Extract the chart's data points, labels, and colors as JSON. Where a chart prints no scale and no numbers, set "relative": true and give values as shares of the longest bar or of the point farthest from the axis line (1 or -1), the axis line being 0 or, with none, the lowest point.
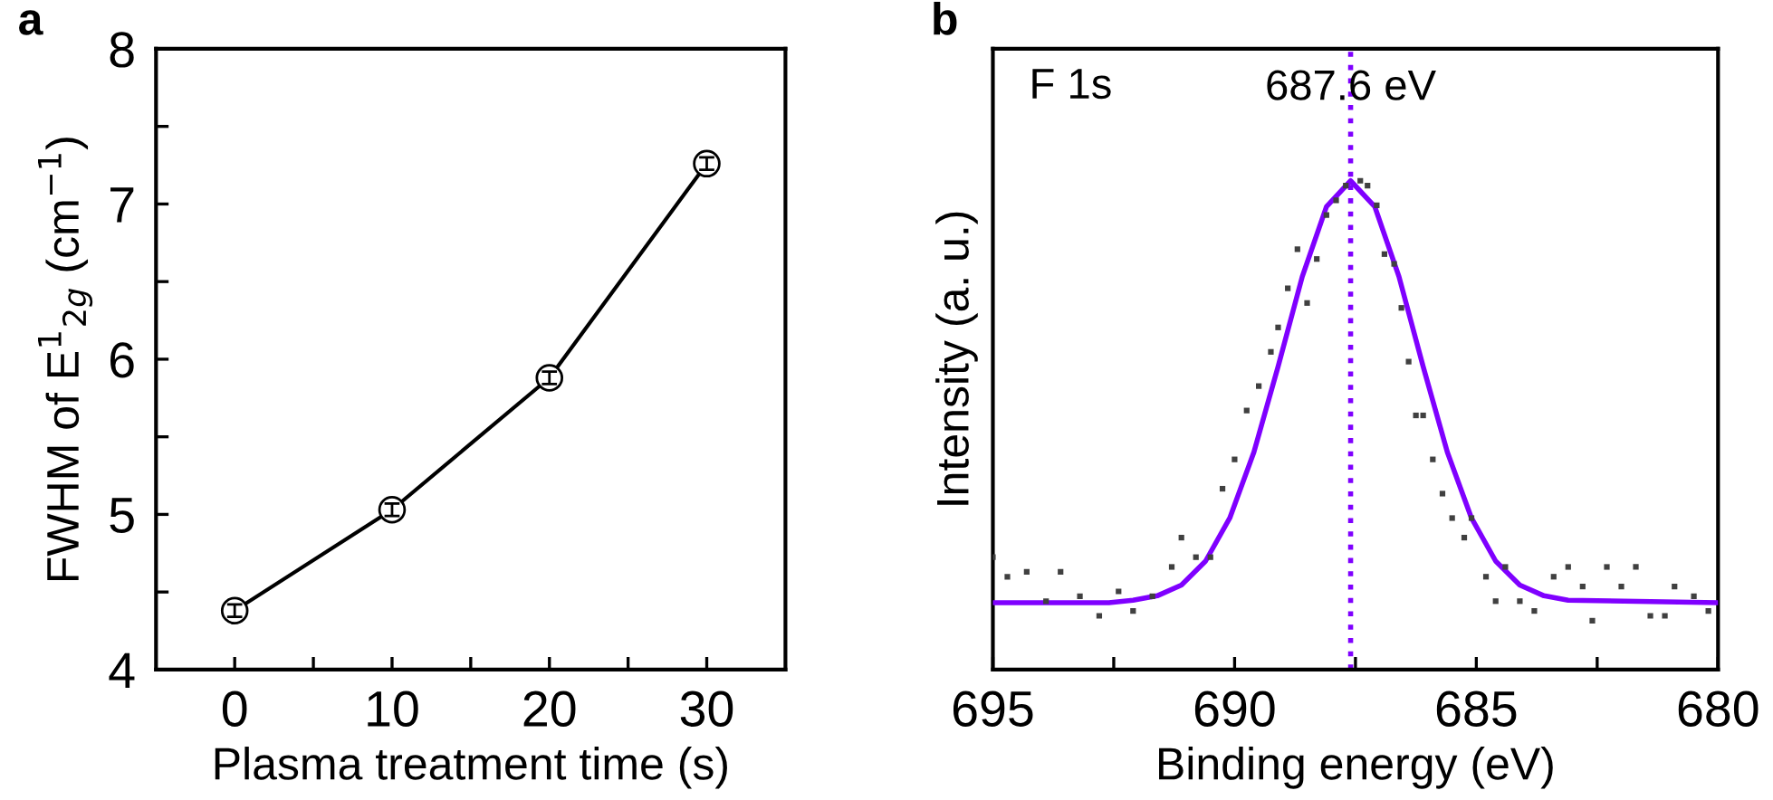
{
  "chart_data": [
    {
      "type": "line",
      "title": "a",
      "xlabel": "Plasma treatment time (s)",
      "ylabel": "FWHM of E$^{1}$$_{2g}$ (cm$^{−1}$)",
      "x": [
        0,
        10,
        20,
        30
      ],
      "series": [
        {
          "color": "#000000",
          "values": [
            4.38,
            5.03,
            5.88,
            7.26
          ],
          "errors": [
            0.04,
            0.04,
            0.04,
            0.04
          ]
        }
      ],
      "marker": "circle",
      "line_style": "solid",
      "xlim": [
        -5,
        35
      ],
      "xticks": [
        0,
        {
          "value": 5,
          "label": null
        },
        10,
        {
          "value": 15,
          "label": null
        },
        20,
        {
          "value": 25,
          "label": null
        },
        30
      ],
      "ylim": [
        4,
        8
      ],
      "yticks": [
        4,
        {
          "value": 4.5,
          "label": null
        },
        5,
        {
          "value": 5.5,
          "label": null
        },
        6,
        {
          "value": 6.5,
          "label": null
        },
        7,
        {
          "value": 7.5,
          "label": null
        },
        8
      ],
      "grid": false,
      "legend": false
    },
    {
      "type": "line",
      "title": "b",
      "xlabel": "Binding energy (eV)",
      "ylabel": "Intensity (a. u.)",
      "relative": true,
      "tick_labels": "x",
      "annotations": [
        "F 1s"
      ],
      "series": [
        {
          "type": "scatter",
          "color": "#404040",
          "marker": "square",
          "x": [
            695.0,
            694.7,
            694.3,
            693.9,
            693.6,
            693.2,
            692.8,
            692.4,
            692.1,
            691.7,
            691.3,
            691.1,
            690.8,
            690.5,
            690.25,
            690.0,
            689.75,
            689.5,
            689.25,
            689.1,
            688.9,
            688.7,
            688.5,
            688.3,
            688.1,
            687.9,
            687.7,
            687.4,
            687.25,
            687.06,
            686.9,
            686.7,
            686.55,
            686.4,
            686.25,
            686.1,
            685.9,
            685.7,
            685.5,
            685.25,
            685.1,
            684.8,
            684.6,
            684.4,
            684.1,
            683.8,
            683.4,
            683.1,
            682.8,
            682.6,
            682.3,
            682.0,
            681.7,
            681.4,
            681.1,
            680.9,
            680.5,
            680.2
          ],
          "values": [
            0.23,
            0.19,
            0.2,
            0.14,
            0.2,
            0.15,
            0.11,
            0.16,
            0.12,
            0.15,
            0.21,
            0.27,
            0.23,
            0.23,
            0.37,
            0.43,
            0.53,
            0.58,
            0.65,
            0.7,
            0.78,
            0.86,
            0.75,
            0.84,
            0.93,
            0.96,
            0.99,
            1.0,
            0.99,
            0.95,
            0.85,
            0.83,
            0.74,
            0.63,
            0.52,
            0.52,
            0.43,
            0.36,
            0.31,
            0.27,
            0.31,
            0.19,
            0.14,
            0.21,
            0.14,
            0.12,
            0.19,
            0.21,
            0.17,
            0.1,
            0.21,
            0.17,
            0.21,
            0.11,
            0.11,
            0.17,
            0.15,
            0.12
          ]
        },
        {
          "type": "line",
          "color": "#7f00ff",
          "marker": "none",
          "x": [
            695,
            692.6,
            692.1,
            691.6,
            691.1,
            690.6,
            690.1,
            689.6,
            689.1,
            688.6,
            688.1,
            687.6,
            687.1,
            686.6,
            686.1,
            685.6,
            685.1,
            684.6,
            684.1,
            683.6,
            683.1,
            680
          ],
          "values": [
            0.137,
            0.137,
            0.142,
            0.151,
            0.173,
            0.222,
            0.31,
            0.445,
            0.62,
            0.804,
            0.947,
            1.0,
            0.947,
            0.804,
            0.62,
            0.445,
            0.31,
            0.222,
            0.173,
            0.151,
            0.142,
            0.137
          ]
        }
      ],
      "ref_lines": [
        {
          "axis": "x",
          "value": 687.6,
          "label": "687.6 eV",
          "color": "#7f00ff",
          "line_style": "dotted"
        }
      ],
      "xlim": [
        695,
        680
      ],
      "xticks": [
        695,
        {
          "value": 692.5,
          "label": null
        },
        690,
        {
          "value": 687.5,
          "label": null
        },
        685,
        {
          "value": 682.5,
          "label": null
        },
        680
      ],
      "grid": false,
      "legend": false
    }
  ]
}
